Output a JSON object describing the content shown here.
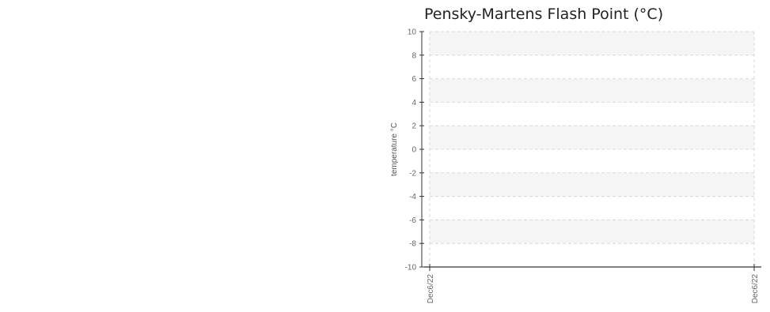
{
  "chart_data": {
    "type": "line",
    "title": "Pensky-Martens Flash Point (°C)",
    "xlabel": "",
    "ylabel": "temperature °C",
    "ylim": [
      -10,
      10
    ],
    "yticks": [
      10,
      8,
      6,
      4,
      2,
      0,
      -2,
      -4,
      -6,
      -8,
      -10
    ],
    "xticks": [
      "Dec6/22",
      "Dec6/22"
    ],
    "series": [],
    "grid": true,
    "banded_background": true,
    "colors": {
      "band": "#f5f5f5",
      "grid": "#d9d9d9",
      "axis": "#333333",
      "text": "#666666"
    }
  }
}
